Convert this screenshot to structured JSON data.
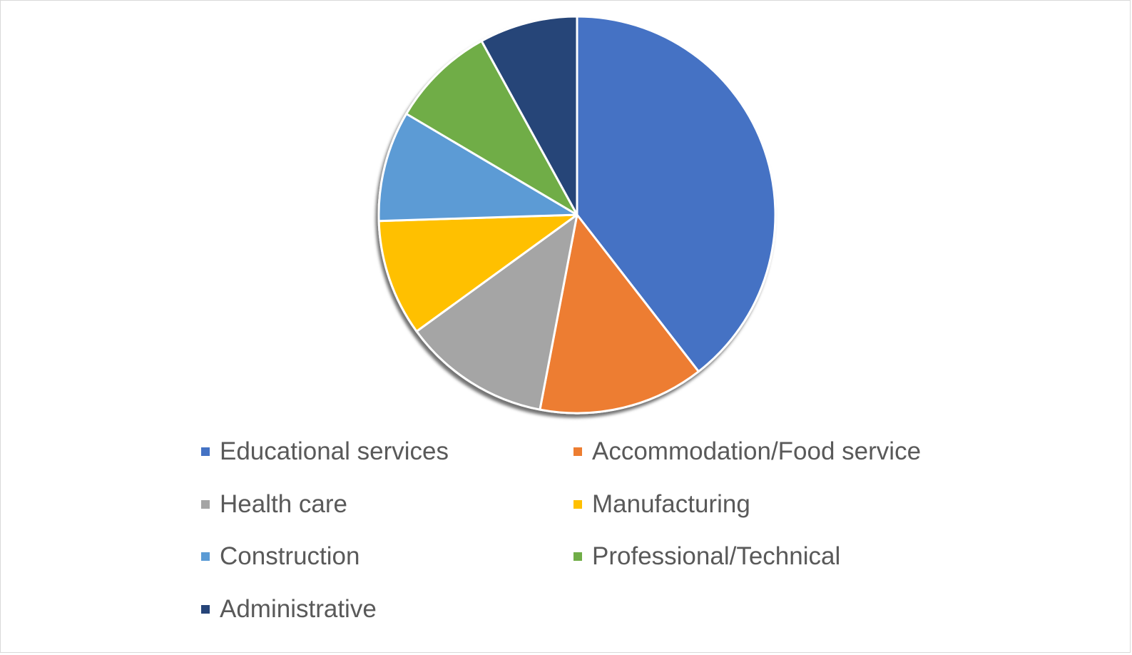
{
  "chart_data": {
    "type": "pie",
    "title": "",
    "categories": [
      "Educational services",
      "Accommodation/Food service",
      "Health care",
      "Manufacturing",
      "Construction",
      "Professional/Technical",
      "Administrative"
    ],
    "values": [
      39.5,
      13.5,
      12,
      9.5,
      9,
      8.5,
      8
    ],
    "colors": [
      "#4472C4",
      "#ED7D31",
      "#A5A5A5",
      "#FFC000",
      "#5B9BD5",
      "#70AD47",
      "#264478"
    ],
    "legend_position": "bottom"
  }
}
